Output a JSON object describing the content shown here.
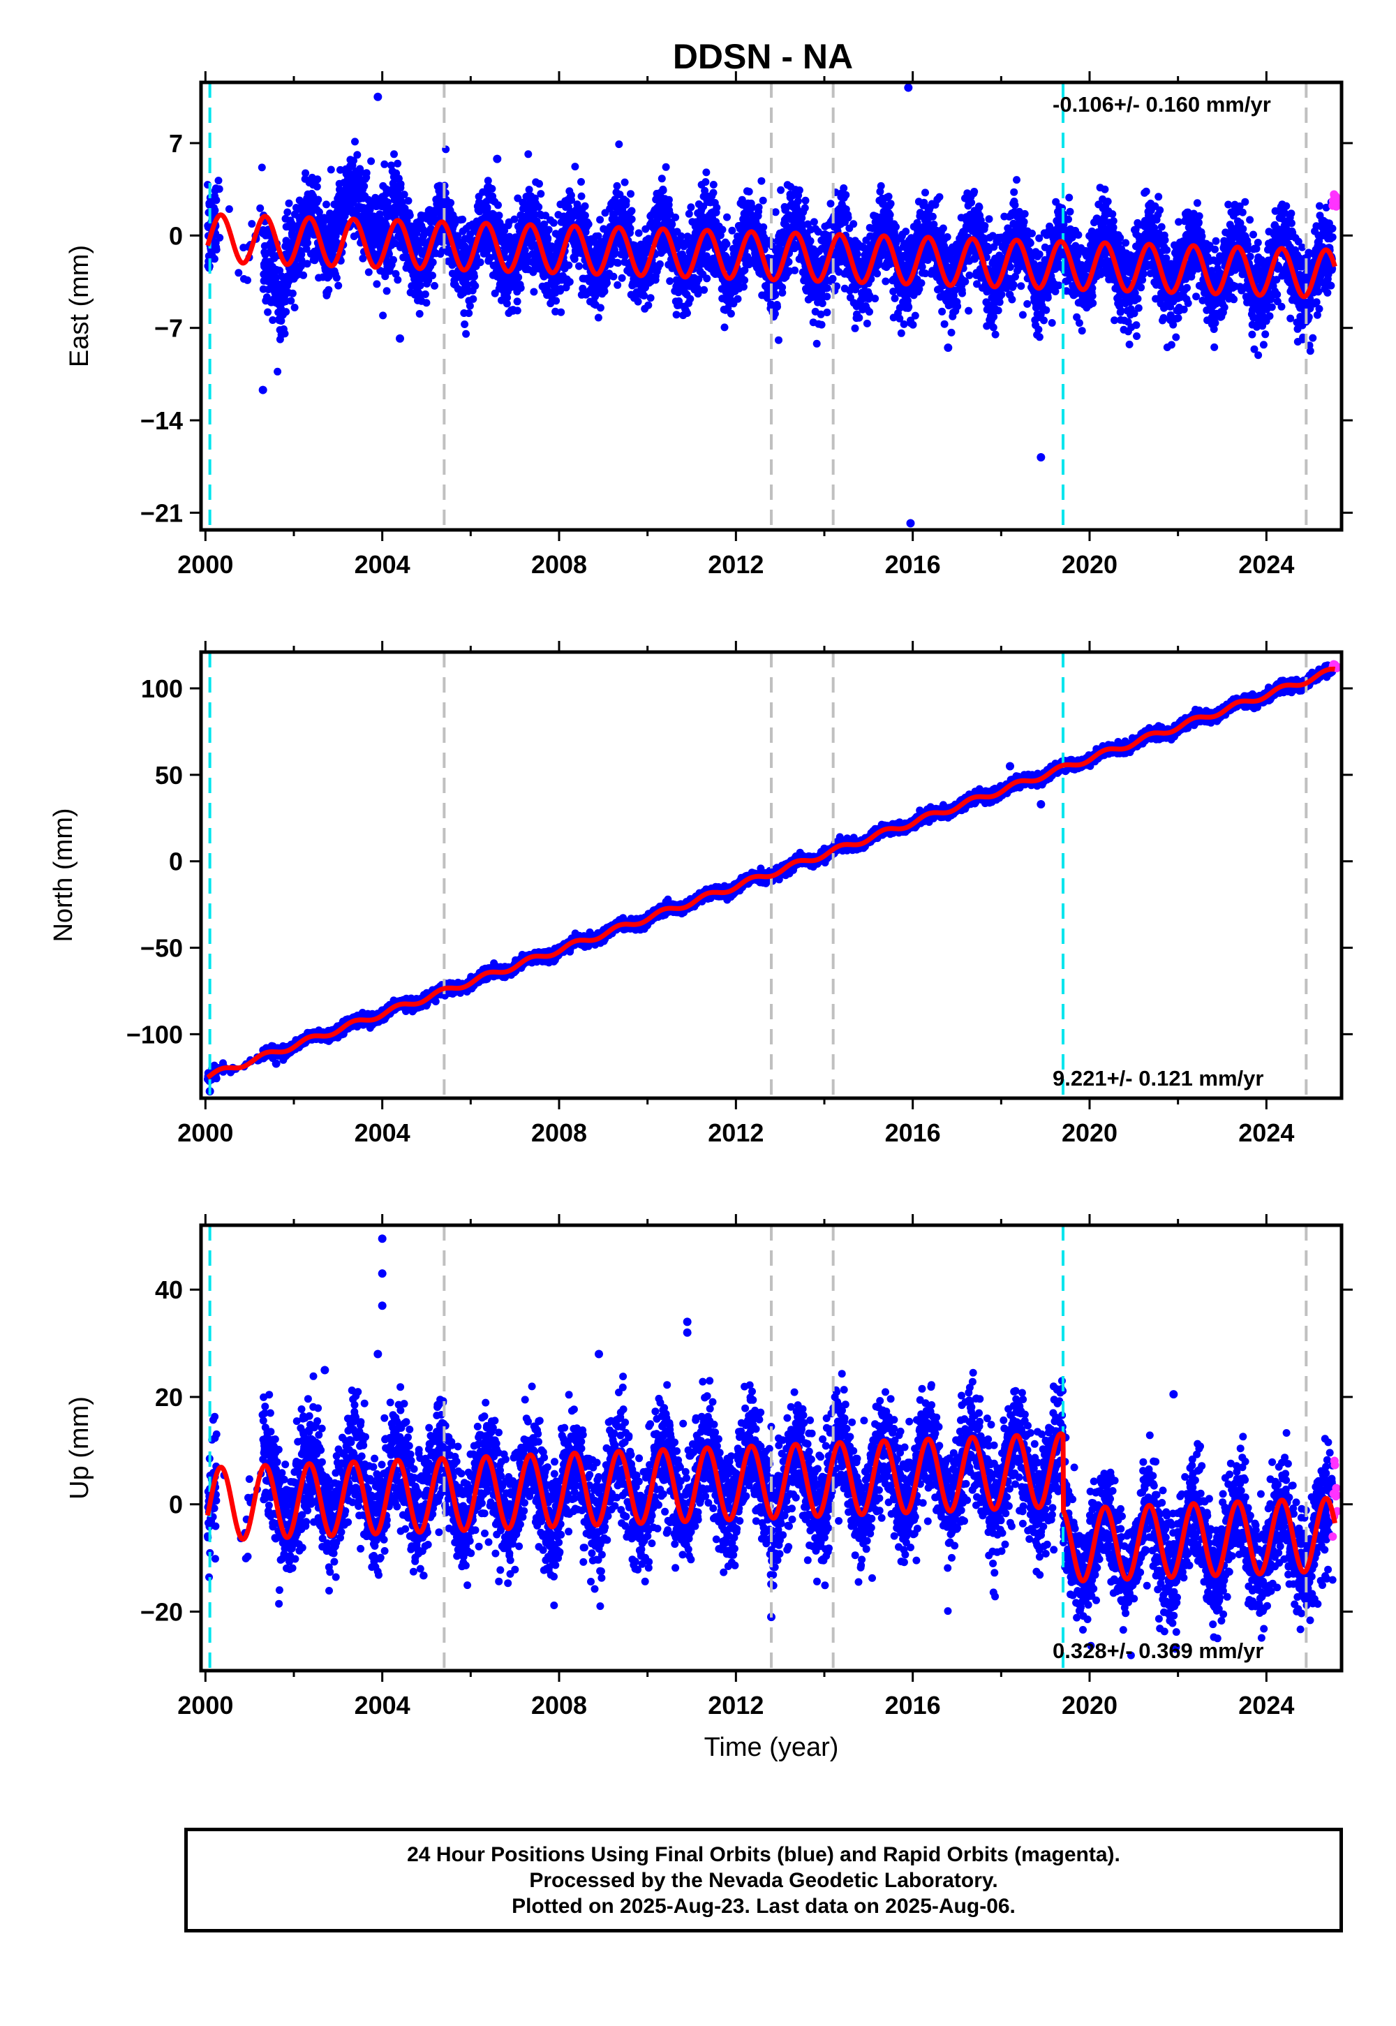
{
  "figure": {
    "title": "DDSN - NA",
    "xlabel": "Time (year)",
    "caption": [
      "24 Hour Positions Using Final Orbits (blue) and Rapid Orbits (magenta).",
      "Processed by the Nevada Geodetic Laboratory.",
      "Plotted on 2025-Aug-23. Last data on 2025-Aug-06."
    ]
  },
  "colors": {
    "final": "#0000ff",
    "rapid": "#ff33ff",
    "model": "#ff0000",
    "antenna_event": "#00e5ee",
    "equipment_event": "#c0c0c0"
  },
  "events": {
    "cyan": [
      2000.1,
      2019.4
    ],
    "gray": [
      2005.4,
      2012.8,
      2014.2,
      2024.9
    ]
  },
  "chart_data": [
    {
      "type": "scatter",
      "component": "east",
      "ylabel": "East (mm)",
      "xlim": [
        1999.9,
        2025.7
      ],
      "ylim": [
        -22.3,
        11.6
      ],
      "xticks": [
        "2000",
        "2004",
        "2008",
        "2012",
        "2016",
        "2020",
        "2024"
      ],
      "yticks": [
        "7",
        "0",
        "−7",
        "−14",
        "−21"
      ],
      "ytick_values": [
        7,
        0,
        -7,
        -14,
        -21
      ],
      "rate_label": "-0.106+/- 0.160 mm/yr",
      "rate_position": "top-right",
      "series": [
        {
          "kind": "final",
          "start": 2000.05,
          "end": 2025.5,
          "trend": -0.106,
          "offset": 0,
          "amp": 1.9,
          "noise": 1.6
        },
        {
          "kind": "rapid",
          "start": 2025.5,
          "end": 2025.6,
          "trend": 0,
          "offset": 2.6,
          "amp": 0,
          "noise": 0.3
        },
        {
          "kind": "model",
          "start": 2000.05,
          "end": 2025.55,
          "trend": -0.106,
          "offset": -0.2,
          "amp": 1.8
        }
      ],
      "anomalies": [
        {
          "start": 2002.8,
          "end": 2004.1,
          "delta": 2.8
        },
        {
          "start": 2001.3,
          "end": 2001.8,
          "delta": -4.5
        }
      ],
      "outliers": [
        {
          "x": 2001.3,
          "y": -11.7
        },
        {
          "x": 2003.9,
          "y": 10.5
        },
        {
          "x": 2015.9,
          "y": 11.2
        },
        {
          "x": 2015.95,
          "y": -21.8
        },
        {
          "x": 2018.9,
          "y": -16.8
        },
        {
          "x": 2016.8,
          "y": -8.5
        },
        {
          "x": 2004.4,
          "y": -7.8
        },
        {
          "x": 2006.6,
          "y": 5.8
        }
      ],
      "gaps": [
        [
          2000.25,
          2001.3
        ]
      ]
    },
    {
      "type": "scatter",
      "component": "north",
      "ylabel": "North (mm)",
      "xlim": [
        1999.9,
        2025.7
      ],
      "ylim": [
        -137,
        121
      ],
      "xticks": [
        "2000",
        "2004",
        "2008",
        "2012",
        "2016",
        "2020",
        "2024"
      ],
      "yticks": [
        "100",
        "50",
        "0",
        "−50",
        "−100"
      ],
      "ytick_values": [
        100,
        50,
        0,
        -50,
        -100
      ],
      "rate_label": "9.221+/- 0.121 mm/yr",
      "rate_position": "bottom-right",
      "series": [
        {
          "kind": "final",
          "start": 2000.05,
          "end": 2025.5,
          "trend": 9.221,
          "offset": -125,
          "amp": 1.6,
          "noise": 1.5
        },
        {
          "kind": "rapid",
          "start": 2025.5,
          "end": 2025.6,
          "trend": 0,
          "offset": 112,
          "amp": 0,
          "noise": 1
        },
        {
          "kind": "model",
          "start": 2000.05,
          "end": 2025.55,
          "trend": 9.221,
          "offset": -125,
          "amp": 1.7
        }
      ],
      "anomalies": [],
      "outliers": [
        {
          "x": 2000.1,
          "y": -133
        },
        {
          "x": 2018.9,
          "y": 33
        },
        {
          "x": 2001.6,
          "y": -117
        },
        {
          "x": 2018.2,
          "y": 55
        }
      ],
      "gaps": [
        [
          2000.25,
          2001.3
        ]
      ]
    },
    {
      "type": "scatter",
      "component": "up",
      "ylabel": "Up (mm)",
      "xlabel": "Time (year)",
      "xlim": [
        1999.9,
        2025.7
      ],
      "ylim": [
        -31,
        52
      ],
      "xticks": [
        "2000",
        "2004",
        "2008",
        "2012",
        "2016",
        "2020",
        "2024"
      ],
      "yticks": [
        "40",
        "20",
        "0",
        "−20"
      ],
      "ytick_values": [
        40,
        20,
        0,
        -20
      ],
      "rate_label": "0.328+/- 0.369 mm/yr",
      "rate_position": "bottom-right",
      "series": [
        {
          "kind": "final",
          "start": 2000.05,
          "end": 2025.5,
          "trend": 0.328,
          "offset": 0,
          "amp": 6.5,
          "noise": 5.2
        },
        {
          "kind": "rapid",
          "start": 2025.5,
          "end": 2025.6,
          "trend": 0,
          "offset": 2,
          "amp": 0,
          "noise": 5
        },
        {
          "kind": "model",
          "start": 2000.05,
          "end": 2025.55,
          "trend": 0.328,
          "offset": 0,
          "amp": 6.8
        }
      ],
      "steps": [
        {
          "at": 2019.4,
          "delta": -14
        }
      ],
      "anomalies": [
        {
          "start": 2001.0,
          "end": 2005.4,
          "delta": 3
        }
      ],
      "outliers": [
        {
          "x": 2004.0,
          "y": 49.5
        },
        {
          "x": 2004.0,
          "y": 43
        },
        {
          "x": 2004.0,
          "y": 37
        },
        {
          "x": 2003.9,
          "y": 28
        },
        {
          "x": 2010.9,
          "y": 34
        },
        {
          "x": 2010.9,
          "y": 32
        },
        {
          "x": 2008.9,
          "y": 28
        },
        {
          "x": 2021.9,
          "y": 20.5
        },
        {
          "x": 2002.7,
          "y": 25
        },
        {
          "x": 2012.8,
          "y": -21
        }
      ],
      "gaps": [
        [
          2000.25,
          2001.3
        ]
      ]
    }
  ]
}
